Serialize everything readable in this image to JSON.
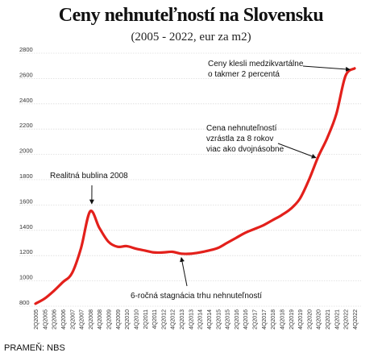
{
  "chart_data": {
    "type": "line",
    "title": "Ceny nehnuteľností na Slovensku",
    "subtitle": "(2005 - 2022, eur za m2)",
    "source": "PRAMEŇ: NBS",
    "ylim": [
      800,
      2800
    ],
    "yticks": [
      800,
      1000,
      1200,
      1400,
      1600,
      1800,
      2000,
      2200,
      2400,
      2600,
      2800
    ],
    "grid": true,
    "line_color": "#e3201b",
    "x": [
      "2Q2005",
      "4Q2005",
      "2Q2006",
      "4Q2006",
      "2Q2007",
      "4Q2007",
      "2Q2008",
      "4Q2008",
      "2Q2009",
      "4Q2009",
      "2Q2010",
      "4Q2010",
      "2Q2011",
      "4Q2011",
      "2Q2012",
      "4Q2012",
      "2Q2013",
      "4Q2013",
      "2Q2014",
      "4Q2014",
      "2Q2015",
      "4Q2015",
      "2Q2016",
      "4Q2016",
      "2Q2017",
      "4Q2017",
      "2Q2018",
      "4Q2018",
      "2Q2019",
      "4Q2019",
      "2Q2020",
      "4Q2020",
      "2Q2021",
      "4Q2021",
      "2Q2022",
      "4Q2022"
    ],
    "values": [
      820,
      860,
      920,
      990,
      1060,
      1260,
      1550,
      1420,
      1310,
      1270,
      1275,
      1255,
      1240,
      1225,
      1225,
      1230,
      1215,
      1215,
      1225,
      1240,
      1260,
      1300,
      1340,
      1380,
      1410,
      1440,
      1480,
      1520,
      1570,
      1650,
      1800,
      1980,
      2130,
      2320,
      2620,
      2680
    ],
    "annotations": [
      {
        "text": [
          "Ceny klesli medzikvartálne",
          "o takmer 2 percentá"
        ],
        "x": "4Q2022",
        "y": 2690
      },
      {
        "text": [
          "Cena nehnuteľností",
          "vzrástla za 8 rokov",
          "viac ako dvojnásobne"
        ],
        "x": "4Q2020",
        "y": 2000
      },
      {
        "text": [
          "Realitná bublina 2008"
        ],
        "x": "2Q2008",
        "y": 1560
      },
      {
        "text": [
          "6-ročná stagnácia trhu nehnuteľností"
        ],
        "x": "2Q2013",
        "y": 1215
      }
    ]
  }
}
